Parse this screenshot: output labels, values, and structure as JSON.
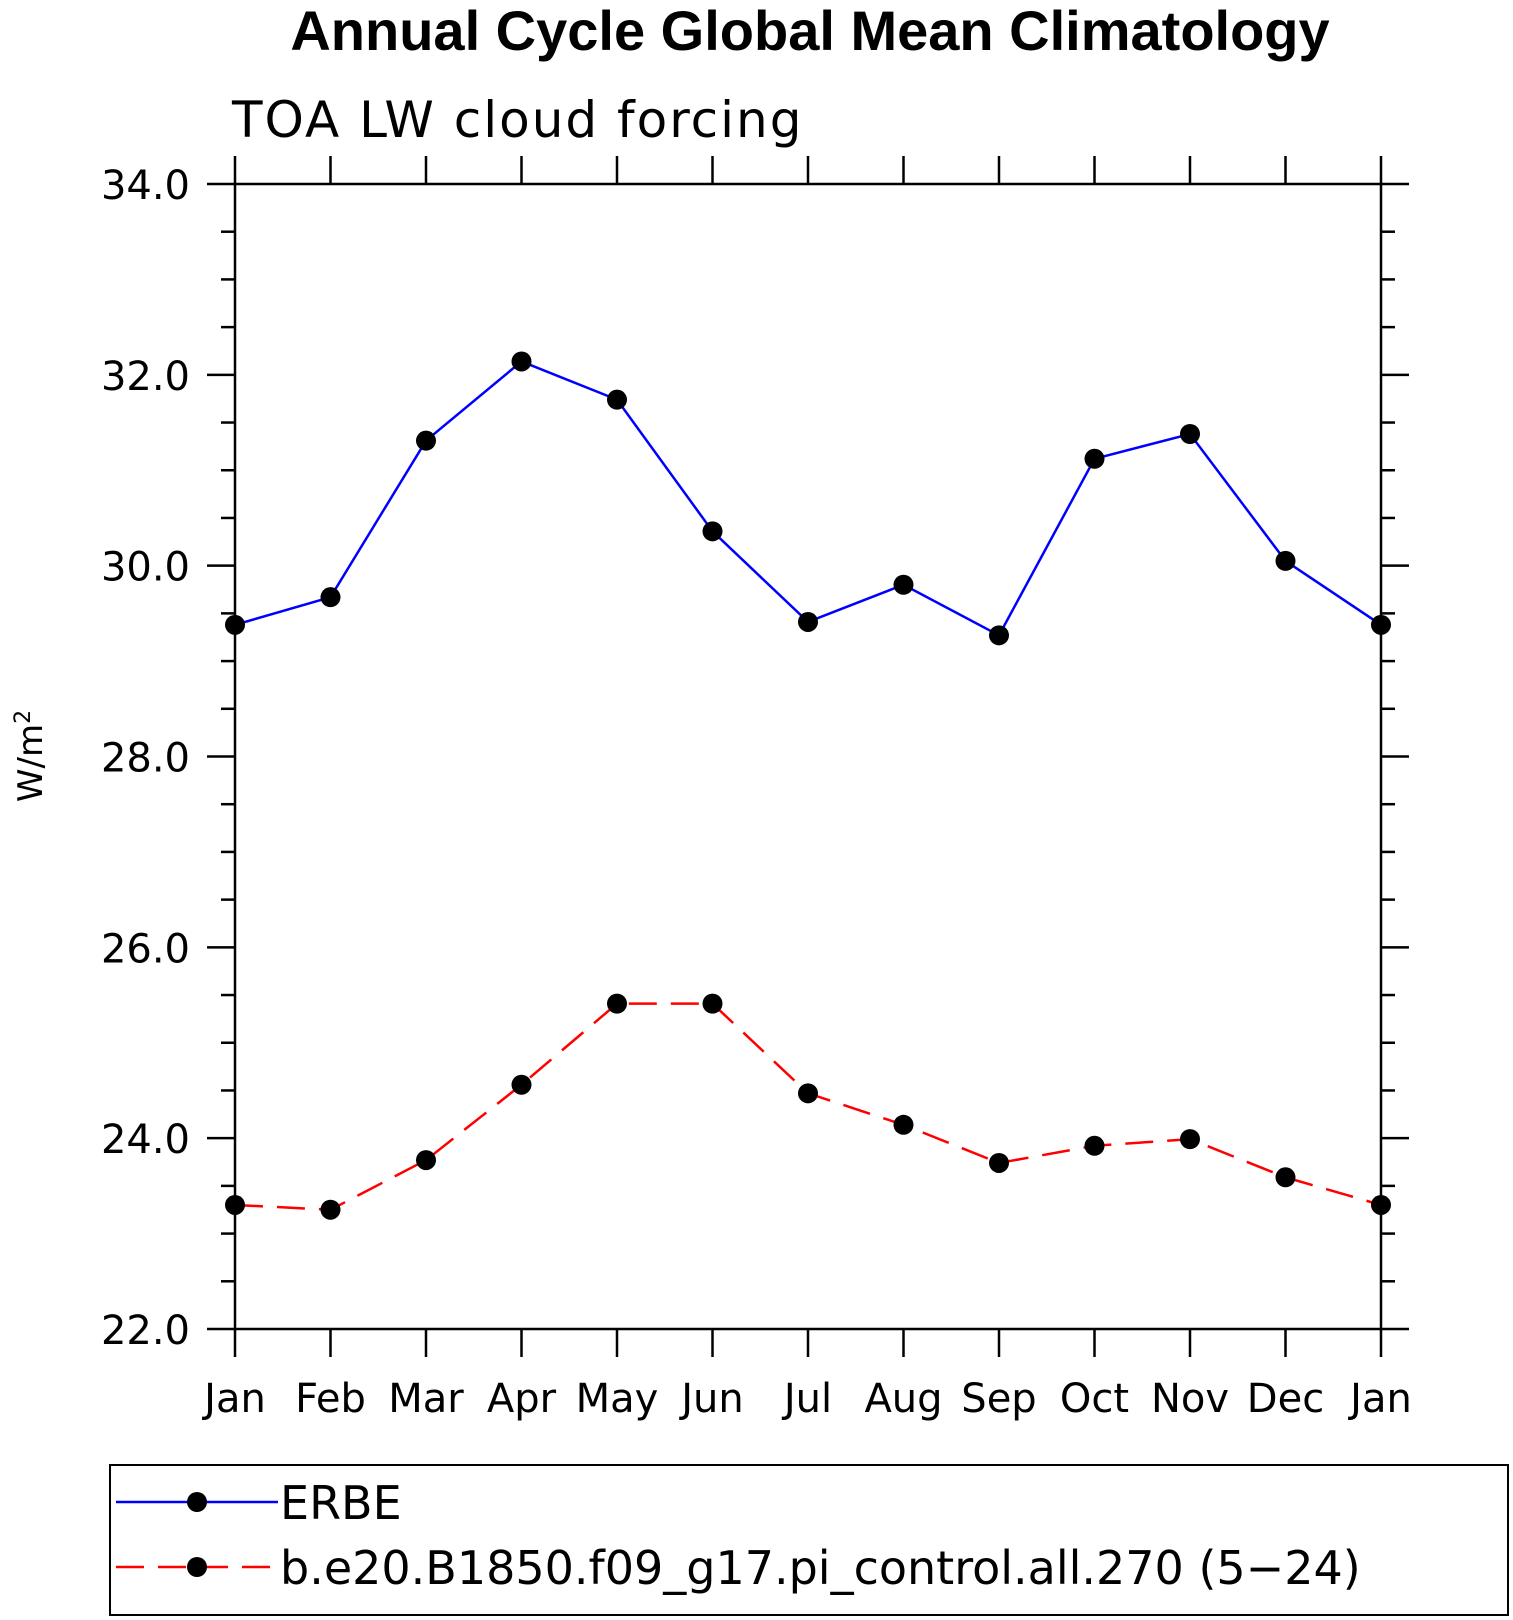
{
  "chart_data": {
    "type": "line",
    "title": "Annual Cycle Global Mean Climatology",
    "subtitle": "TOA LW cloud forcing",
    "ylabel": "W/m",
    "ylabel_superscript": "2",
    "categories": [
      "Jan",
      "Feb",
      "Mar",
      "Apr",
      "May",
      "Jun",
      "Jul",
      "Aug",
      "Sep",
      "Oct",
      "Nov",
      "Dec",
      "Jan"
    ],
    "ylim": [
      22.0,
      34.0
    ],
    "yticks": [
      "22.0",
      "24.0",
      "26.0",
      "28.0",
      "30.0",
      "32.0",
      "34.0"
    ],
    "grid": false,
    "legend_position": "bottom",
    "series": [
      {
        "name": "ERBE",
        "color": "#0000ff",
        "dash": "solid",
        "values": [
          29.38,
          29.67,
          31.31,
          32.14,
          31.74,
          30.36,
          29.41,
          29.8,
          29.27,
          31.12,
          31.38,
          30.05,
          29.38
        ]
      },
      {
        "name": "b.e20.B1850.f09_g17.pi_control.all.270 (5−24)",
        "color": "#ff0000",
        "dash": "dashed",
        "values": [
          23.3,
          23.25,
          23.77,
          24.56,
          25.41,
          25.41,
          24.47,
          24.14,
          23.74,
          23.92,
          23.99,
          23.59,
          23.3
        ]
      }
    ]
  }
}
